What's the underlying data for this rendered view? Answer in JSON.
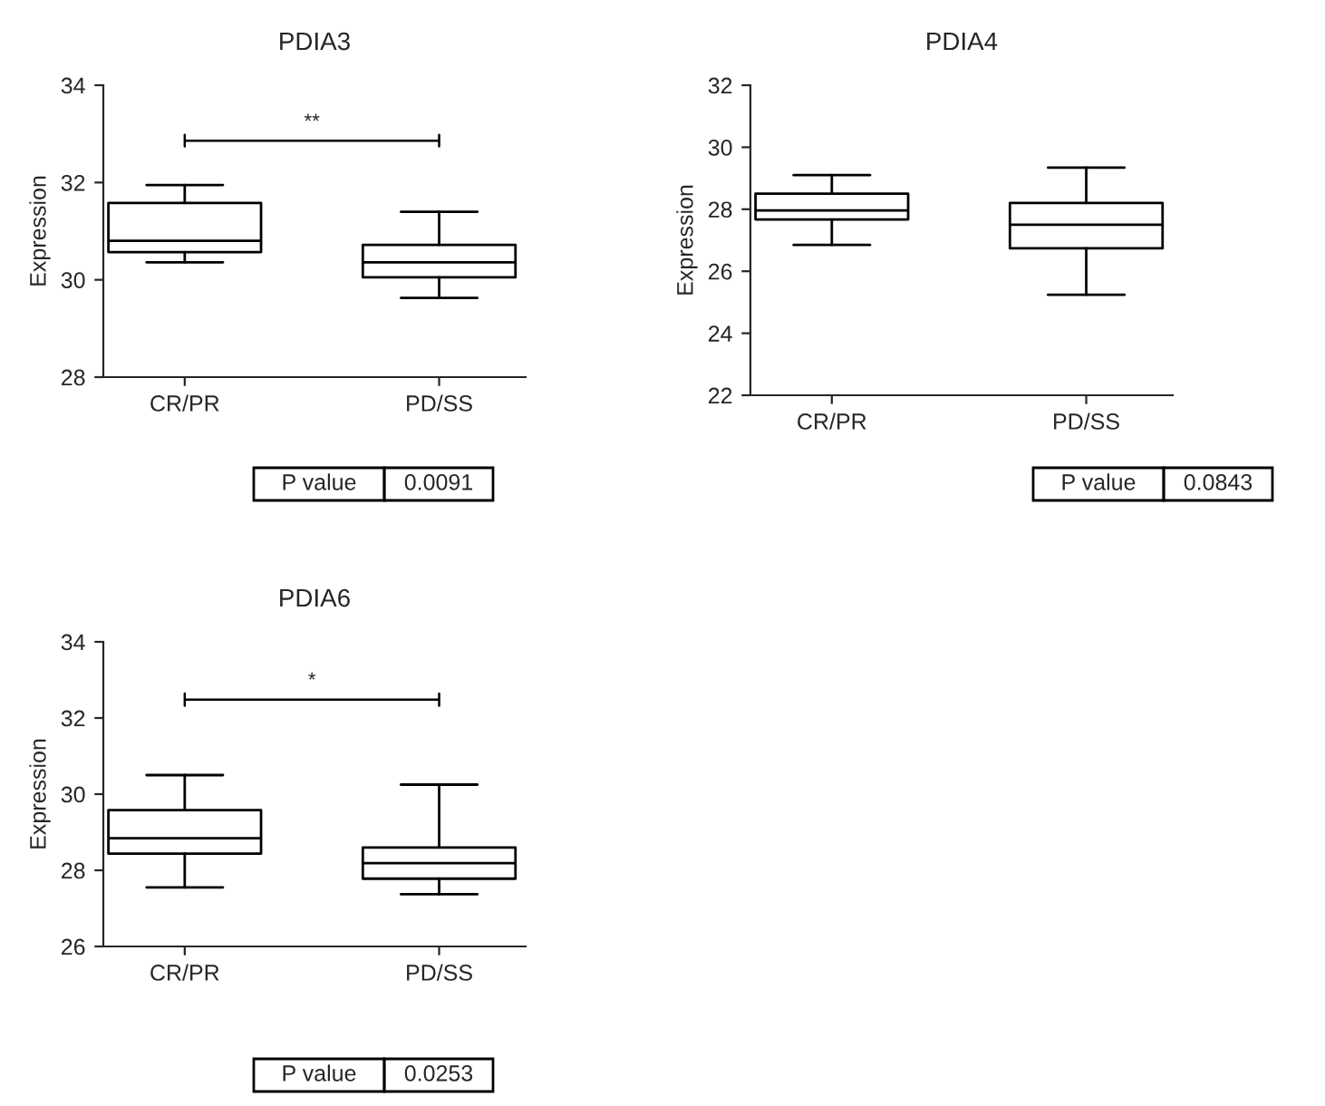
{
  "chart_data": [
    {
      "type": "box",
      "title": "PDIA3",
      "ylabel": "Expression",
      "categories": [
        "CR/PR",
        "PD/SS"
      ],
      "ylim": [
        28,
        34
      ],
      "yticks": [
        28,
        30,
        32,
        34
      ],
      "grid": false,
      "legend": false,
      "boxes": [
        {
          "low": 30.36,
          "q1": 30.57,
          "median": 30.8,
          "q3": 31.58,
          "high": 31.95
        },
        {
          "low": 29.63,
          "q1": 30.05,
          "median": 30.36,
          "q3": 30.72,
          "high": 31.4
        }
      ],
      "annotations": [
        "**",
        "P value",
        "0.0091"
      ]
    },
    {
      "type": "box",
      "title": "PDIA4",
      "ylabel": "Expression",
      "categories": [
        "CR/PR",
        "PD/SS"
      ],
      "ylim": [
        22,
        32
      ],
      "yticks": [
        22,
        24,
        26,
        28,
        30,
        32
      ],
      "grid": false,
      "legend": false,
      "boxes": [
        {
          "low": 26.85,
          "q1": 27.67,
          "median": 27.96,
          "q3": 28.5,
          "high": 29.1
        },
        {
          "low": 25.24,
          "q1": 26.74,
          "median": 27.5,
          "q3": 28.2,
          "high": 29.34
        }
      ],
      "annotations": [
        "P value",
        "0.0843"
      ]
    },
    {
      "type": "box",
      "title": "PDIA6",
      "ylabel": "Expression",
      "categories": [
        "CR/PR",
        "PD/SS"
      ],
      "ylim": [
        26,
        34
      ],
      "yticks": [
        26,
        28,
        30,
        32,
        34
      ],
      "grid": false,
      "legend": false,
      "boxes": [
        {
          "low": 27.55,
          "q1": 28.44,
          "median": 28.84,
          "q3": 29.58,
          "high": 30.5
        },
        {
          "low": 27.37,
          "q1": 27.78,
          "median": 28.19,
          "q3": 28.6,
          "high": 30.25
        }
      ],
      "annotations": [
        "*",
        "P value",
        "0.0253"
      ]
    }
  ]
}
